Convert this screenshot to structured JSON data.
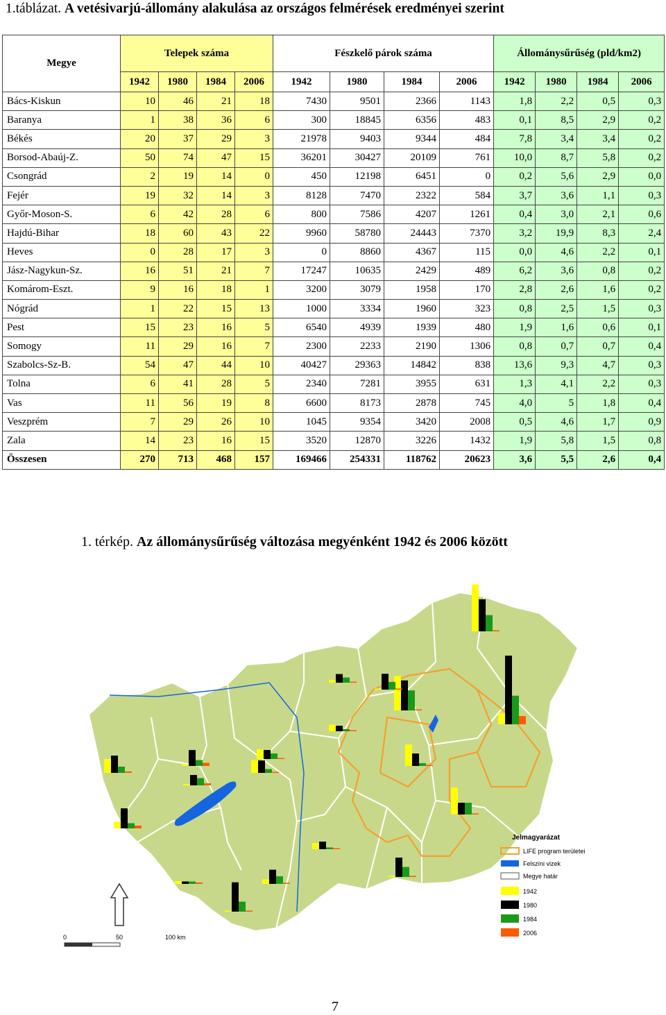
{
  "table_title": {
    "prefix": "1.táblázat. ",
    "text": "A vetésivarjú-állomány alakulása az országos felmérések eredményei szerint"
  },
  "table": {
    "col_county": "Megye",
    "groups": [
      "Telepek száma",
      "Fészkelő párok száma",
      "Állománysűrűség (pld/km2)"
    ],
    "years": [
      "1942",
      "1980",
      "1984",
      "2006"
    ],
    "rows": [
      {
        "name": "Bács-Kiskun",
        "v": [
          "10",
          "46",
          "21",
          "18",
          "7430",
          "9501",
          "2366",
          "1143",
          "1,8",
          "2,2",
          "0,5",
          "0,3"
        ]
      },
      {
        "name": "Baranya",
        "v": [
          "1",
          "38",
          "36",
          "6",
          "300",
          "18845",
          "6356",
          "483",
          "0,1",
          "8,5",
          "2,9",
          "0,2"
        ]
      },
      {
        "name": "Békés",
        "v": [
          "20",
          "37",
          "29",
          "3",
          "21978",
          "9403",
          "9344",
          "484",
          "7,8",
          "3,4",
          "3,4",
          "0,2"
        ]
      },
      {
        "name": "Borsod-Abaúj-Z.",
        "v": [
          "50",
          "74",
          "47",
          "15",
          "36201",
          "30427",
          "20109",
          "761",
          "10,0",
          "8,7",
          "5,8",
          "0,2"
        ]
      },
      {
        "name": "Csongrád",
        "v": [
          "2",
          "19",
          "14",
          "0",
          "450",
          "12198",
          "6451",
          "0",
          "0,2",
          "5,6",
          "2,9",
          "0,0"
        ]
      },
      {
        "name": "Fejér",
        "v": [
          "19",
          "32",
          "14",
          "3",
          "8128",
          "7470",
          "2322",
          "584",
          "3,7",
          "3,6",
          "1,1",
          "0,3"
        ]
      },
      {
        "name": "Győr-Moson-S.",
        "v": [
          "6",
          "42",
          "28",
          "6",
          "800",
          "7586",
          "4207",
          "1261",
          "0,4",
          "3,0",
          "2,1",
          "0,6"
        ]
      },
      {
        "name": "Hajdú-Bihar",
        "v": [
          "18",
          "60",
          "43",
          "22",
          "9960",
          "58780",
          "24443",
          "7370",
          "3,2",
          "19,9",
          "8,3",
          "2,4"
        ]
      },
      {
        "name": "Heves",
        "v": [
          "0",
          "28",
          "17",
          "3",
          "0",
          "8860",
          "4367",
          "115",
          "0,0",
          "4,6",
          "2,2",
          "0,1"
        ]
      },
      {
        "name": "Jász-Nagykun-Sz.",
        "v": [
          "16",
          "51",
          "21",
          "7",
          "17247",
          "10635",
          "2429",
          "489",
          "6,2",
          "3,6",
          "0,8",
          "0,2"
        ]
      },
      {
        "name": "Komárom-Eszt.",
        "v": [
          "9",
          "16",
          "18",
          "1",
          "3200",
          "3079",
          "1958",
          "170",
          "2,8",
          "2,6",
          "1,6",
          "0,2"
        ]
      },
      {
        "name": "Nógrád",
        "v": [
          "1",
          "22",
          "15",
          "13",
          "1000",
          "3334",
          "1960",
          "323",
          "0,8",
          "2,5",
          "1,5",
          "0,3"
        ]
      },
      {
        "name": "Pest",
        "v": [
          "15",
          "23",
          "16",
          "5",
          "6540",
          "4939",
          "1939",
          "480",
          "1,9",
          "1,6",
          "0,6",
          "0,1"
        ]
      },
      {
        "name": "Somogy",
        "v": [
          "11",
          "29",
          "16",
          "7",
          "2300",
          "2233",
          "2190",
          "1306",
          "0,8",
          "0,7",
          "0,7",
          "0,4"
        ]
      },
      {
        "name": "Szabolcs-Sz-B.",
        "v": [
          "54",
          "47",
          "44",
          "10",
          "40427",
          "29363",
          "14842",
          "838",
          "13,6",
          "9,3",
          "4,7",
          "0,3"
        ]
      },
      {
        "name": "Tolna",
        "v": [
          "6",
          "41",
          "28",
          "5",
          "2340",
          "7281",
          "3955",
          "631",
          "1,3",
          "4,1",
          "2,2",
          "0,3"
        ]
      },
      {
        "name": "Vas",
        "v": [
          "11",
          "56",
          "19",
          "8",
          "6600",
          "8173",
          "2878",
          "745",
          "4,0",
          "5",
          "1,8",
          "0,4"
        ]
      },
      {
        "name": "Veszprém",
        "v": [
          "7",
          "29",
          "26",
          "10",
          "1045",
          "9354",
          "3420",
          "2008",
          "0,5",
          "4,6",
          "1,7",
          "0,9"
        ]
      },
      {
        "name": "Zala",
        "v": [
          "14",
          "23",
          "16",
          "15",
          "3520",
          "12870",
          "3226",
          "1432",
          "1,9",
          "5,8",
          "1,5",
          "0,8"
        ]
      }
    ],
    "total": {
      "name": "Összesen",
      "v": [
        "270",
        "713",
        "468",
        "157",
        "169466",
        "254331",
        "118762",
        "20623",
        "3,6",
        "5,5",
        "2,6",
        "0,4"
      ]
    }
  },
  "map_title": {
    "prefix": "1. térkép. ",
    "text": "Az állománysűrűség változása megyénként 1942 és 2006 között"
  },
  "legend": {
    "title": "Jelmagyarázat",
    "items": [
      "LIFE program területei",
      "Felszíni vizek",
      "Megye határ",
      "1942",
      "1980",
      "1984",
      "2006"
    ]
  },
  "scale": {
    "labels": [
      "0",
      "50",
      "100 km"
    ]
  },
  "colors": {
    "y1942": "#ffff00",
    "y1980": "#000000",
    "y1984": "#1a9a1a",
    "y2006": "#ff5a00",
    "land": "#c8d88a",
    "life": "#f2a030",
    "water": "#1565e0"
  },
  "page_number": "7"
}
